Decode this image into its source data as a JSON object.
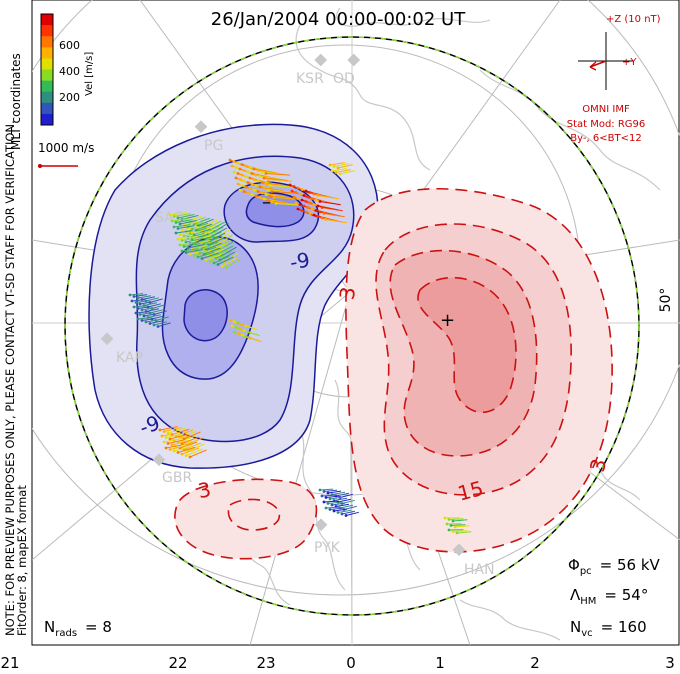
{
  "title": "26/Jan/2004 00:00-00:02 UT",
  "side_note": {
    "line1": "NOTE: FOR PREVIEW PURPOSES ONLY, PLEASE CONTACT VT-SD STAFF FOR VERIFICATION.",
    "line2": "FitOrder: 8, mapEX format"
  },
  "coord_label": "MLT coordinates",
  "colorbar": {
    "label": "Vel [m/s]",
    "ticks": [
      "600",
      "400",
      "200"
    ],
    "colors": [
      "#e00000",
      "#ff3300",
      "#ff7700",
      "#ffb000",
      "#e0e000",
      "#88dd22",
      "#33bb55",
      "#2f8f80",
      "#3355bb",
      "#1f1fd0"
    ]
  },
  "ref_vector": {
    "label": "1000 m/s",
    "color": "#cc0000"
  },
  "imf": {
    "z_label": "+Z (10 nT)",
    "y_label": "+Y",
    "source": "OMNI IMF",
    "model_line1": "Stat Mod: RG96",
    "model_line2": "By-, 6<BT<12",
    "color": "#cc0000"
  },
  "stations": [
    "KSR",
    "OD",
    "PG",
    "SAS",
    "KAP",
    "GBR",
    "PYK",
    "HAN"
  ],
  "latitude_label": "50°",
  "mlt_axis": [
    "21",
    "22",
    "23",
    "0",
    "1",
    "2",
    "3"
  ],
  "contours": {
    "neg_labels": [
      "-9",
      "-9"
    ],
    "pos_labels": [
      "3",
      "3",
      "15",
      "3"
    ],
    "min_marker": "–",
    "max_marker": "+"
  },
  "stats": {
    "phi_symbol": "Φ",
    "phi_sub": "pc",
    "phi_value": "= 56 kV",
    "lambda_symbol": "Λ",
    "lambda_sub": "HM",
    "lambda_value": "= 54°",
    "nvc_symbol": "N",
    "nvc_sub": "vc",
    "nvc_value": "= 160",
    "nrads_symbol": "N",
    "nrads_sub": "rads",
    "nrads_value": "= 8"
  },
  "colors": {
    "neg_fill_outer": "#e2e2f4",
    "neg_fill_mid": "#cfcff0",
    "neg_fill_inner": "#b0b0ee",
    "neg_fill_core": "#8f8fe8",
    "neg_line": "#1a1a9a",
    "pos_fill_outer": "#f9e3e3",
    "pos_fill_mid": "#f5cfcf",
    "pos_fill_inner": "#f0b3b3",
    "pos_fill_core": "#ec9c9c",
    "pos_line": "#cc1111",
    "coast": "#c8c8c8",
    "grid": "#bbbbbb",
    "station": "#c8c8c8"
  }
}
